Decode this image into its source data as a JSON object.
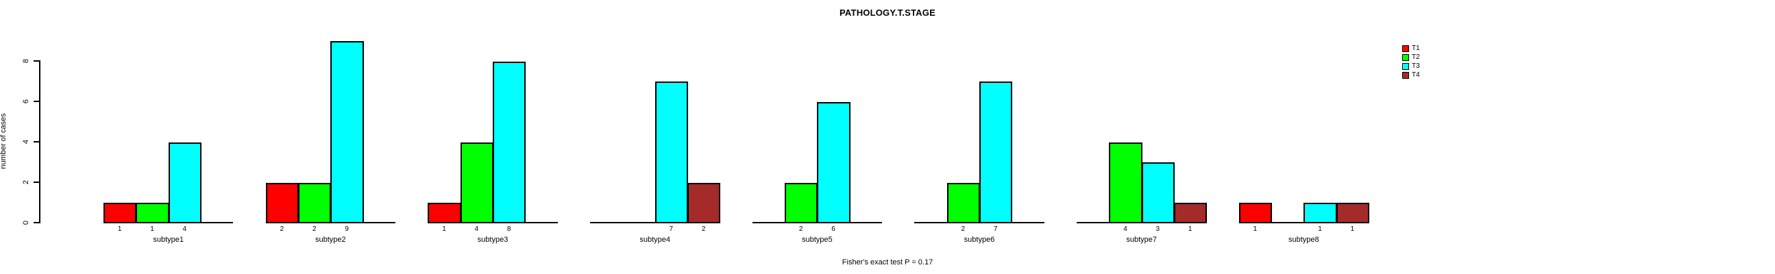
{
  "chart_data": {
    "type": "bar",
    "title": "PATHOLOGY.T.STAGE",
    "ylabel": "number of cases",
    "xlabel": "",
    "footnote": "Fisher's exact test P = 0.17",
    "categories": [
      "subtype1",
      "subtype2",
      "subtype3",
      "subtype4",
      "subtype5",
      "subtype6",
      "subtype7",
      "subtype8"
    ],
    "series": [
      {
        "name": "T1",
        "color": "#FF0000",
        "values": [
          1,
          2,
          1,
          0,
          0,
          0,
          0,
          1
        ]
      },
      {
        "name": "T2",
        "color": "#00FF00",
        "values": [
          1,
          2,
          4,
          0,
          2,
          2,
          4,
          0
        ]
      },
      {
        "name": "T3",
        "color": "#00FFFF",
        "values": [
          4,
          9,
          8,
          7,
          6,
          7,
          3,
          1
        ]
      },
      {
        "name": "T4",
        "color": "#A52A2A",
        "values": [
          0,
          0,
          0,
          2,
          0,
          0,
          1,
          1
        ]
      }
    ],
    "yticks": [
      0,
      2,
      4,
      6,
      8
    ],
    "ylim": [
      0,
      9
    ],
    "grid": false,
    "bar_value_labels_shown": true,
    "zero_bars_hidden": true,
    "legend_position": "top-right",
    "axis_color": "#000000",
    "bar_border_color": "#000000"
  }
}
